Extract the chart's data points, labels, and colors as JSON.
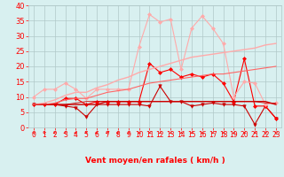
{
  "x": [
    0,
    1,
    2,
    3,
    4,
    5,
    6,
    7,
    8,
    9,
    10,
    11,
    12,
    13,
    14,
    15,
    16,
    17,
    18,
    19,
    20,
    21,
    22,
    23
  ],
  "lines": [
    {
      "y": [
        7.5,
        7.5,
        7.5,
        7.0,
        6.5,
        3.5,
        7.5,
        7.5,
        7.5,
        7.5,
        7.5,
        7.0,
        13.5,
        8.5,
        8.5,
        7.0,
        7.5,
        8.0,
        7.5,
        7.5,
        7.0,
        1.0,
        7.0,
        3.0
      ],
      "color": "#cc0000",
      "marker": "v",
      "lw": 0.8,
      "ms": 2.5
    },
    {
      "y": [
        7.5,
        7.5,
        7.5,
        9.5,
        9.5,
        7.5,
        8.5,
        8.5,
        8.5,
        8.5,
        8.5,
        21.0,
        18.0,
        19.0,
        16.5,
        17.5,
        16.5,
        17.5,
        14.5,
        8.5,
        22.5,
        7.0,
        7.0,
        3.0
      ],
      "color": "#ff0000",
      "marker": "D",
      "lw": 0.8,
      "ms": 2.0
    },
    {
      "y": [
        10.0,
        12.5,
        12.5,
        14.5,
        12.5,
        9.5,
        12.5,
        12.5,
        12.5,
        12.5,
        26.5,
        37.0,
        34.5,
        35.5,
        19.0,
        32.5,
        36.5,
        32.5,
        27.5,
        10.0,
        15.0,
        14.5,
        7.5,
        8.0
      ],
      "color": "#ffaaaa",
      "marker": "D",
      "lw": 0.8,
      "ms": 2.0
    },
    {
      "y": [
        7.5,
        7.5,
        7.5,
        7.5,
        7.5,
        7.5,
        7.5,
        8.5,
        8.5,
        8.5,
        8.5,
        8.5,
        8.5,
        8.5,
        8.5,
        8.5,
        8.5,
        8.5,
        8.5,
        8.5,
        8.5,
        8.5,
        8.5,
        7.5
      ],
      "color": "#cc0000",
      "marker": null,
      "lw": 1.0,
      "ms": 0
    },
    {
      "y": [
        7.5,
        8.0,
        9.0,
        10.5,
        11.5,
        11.5,
        13.0,
        14.0,
        15.5,
        16.5,
        18.0,
        19.0,
        20.0,
        21.0,
        22.0,
        23.0,
        23.5,
        24.0,
        24.5,
        25.0,
        25.5,
        26.0,
        27.0,
        27.5
      ],
      "color": "#ffaaaa",
      "marker": null,
      "lw": 1.0,
      "ms": 0
    },
    {
      "y": [
        7.5,
        7.5,
        8.0,
        9.0,
        9.5,
        9.5,
        10.5,
        11.5,
        12.0,
        12.5,
        13.5,
        14.5,
        15.0,
        15.5,
        16.0,
        16.5,
        17.0,
        17.5,
        17.5,
        18.0,
        18.5,
        19.0,
        19.5,
        20.0
      ],
      "color": "#ff6666",
      "marker": null,
      "lw": 0.8,
      "ms": 0
    },
    {
      "y": [
        7.5,
        7.5,
        7.5,
        7.5,
        8.0,
        8.5,
        8.5,
        8.5,
        8.5,
        8.5,
        8.5,
        8.5,
        8.5,
        8.5,
        8.5,
        8.5,
        8.5,
        8.5,
        8.5,
        8.5,
        8.5,
        8.5,
        8.0,
        8.0
      ],
      "color": "#cc0000",
      "marker": null,
      "lw": 0.6,
      "ms": 0
    }
  ],
  "xlabel": "Vent moyen/en rafales ( km/h )",
  "xlim": [
    -0.5,
    23.5
  ],
  "ylim": [
    0,
    40
  ],
  "yticks": [
    0,
    5,
    10,
    15,
    20,
    25,
    30,
    35,
    40
  ],
  "xticks": [
    0,
    1,
    2,
    3,
    4,
    5,
    6,
    7,
    8,
    9,
    10,
    11,
    12,
    13,
    14,
    15,
    16,
    17,
    18,
    19,
    20,
    21,
    22,
    23
  ],
  "bg_color": "#d8f0f0",
  "grid_color": "#b0c8c8",
  "tick_color": "#ff0000",
  "label_color": "#ff0000",
  "arrow_color": "#ff0000",
  "arrow_angles": [
    225,
    225,
    270,
    270,
    270,
    270,
    270,
    270,
    270,
    315,
    315,
    315,
    315,
    315,
    315,
    315,
    315,
    315,
    315,
    315,
    315,
    315,
    225,
    225
  ]
}
